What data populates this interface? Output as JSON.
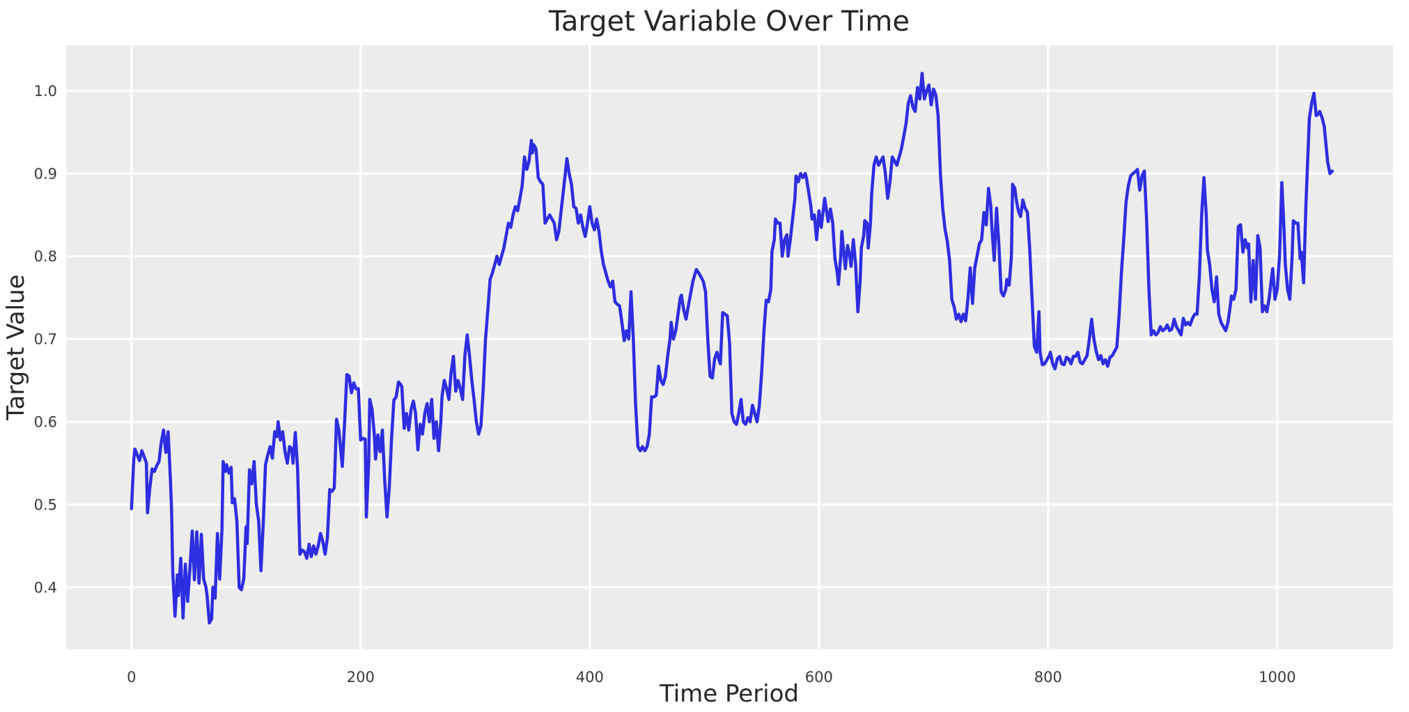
{
  "chart_data": {
    "type": "line",
    "title": "Target Variable Over Time",
    "xlabel": "Time Period",
    "ylabel": "Target Value",
    "legend": "none",
    "grid": true,
    "plot_bg_color": "#ECECEC",
    "grid_color": "#FFFFFF",
    "line_color": "#2D2DE1",
    "text_color": "#262626",
    "x_ticks": [
      0,
      200,
      400,
      600,
      800,
      1000
    ],
    "y_ticks": [
      0.4,
      0.5,
      0.6,
      0.7,
      0.8,
      0.9,
      1.0
    ],
    "xlim": [
      -57,
      1101
    ],
    "ylim": [
      0.325,
      1.055
    ],
    "series": [
      {
        "name": "target",
        "x": [
          0,
          2,
          3,
          5,
          7,
          9,
          11,
          13,
          14,
          16,
          18,
          20,
          22,
          24,
          26,
          28,
          30,
          32,
          34,
          35,
          36,
          38,
          40,
          41,
          43,
          45,
          47,
          49,
          51,
          53,
          55,
          57,
          59,
          61,
          63,
          65,
          66,
          68,
          70,
          71,
          73,
          75,
          77,
          79,
          80,
          82,
          83,
          85,
          87,
          88,
          90,
          92,
          94,
          96,
          98,
          100,
          101,
          103,
          105,
          107,
          109,
          111,
          113,
          115,
          117,
          119,
          121,
          123,
          125,
          127,
          128,
          130,
          132,
          134,
          136,
          138,
          140,
          141,
          143,
          145,
          147,
          149,
          151,
          153,
          155,
          157,
          159,
          161,
          163,
          165,
          167,
          169,
          171,
          173,
          175,
          177,
          179,
          181,
          184,
          186,
          188,
          190,
          192,
          194,
          196,
          198,
          200,
          202,
          204,
          205,
          207,
          208,
          210,
          212,
          213,
          215,
          217,
          219,
          221,
          223,
          225,
          227,
          229,
          231,
          233,
          235,
          236,
          238,
          240,
          242,
          244,
          246,
          248,
          250,
          252,
          254,
          256,
          258,
          260,
          262,
          264,
          266,
          268,
          270,
          271,
          273,
          275,
          277,
          279,
          281,
          283,
          285,
          287,
          289,
          291,
          293,
          295,
          297,
          299,
          301,
          303,
          305,
          307,
          309,
          311,
          313,
          315,
          317,
          319,
          321,
          323,
          325,
          327,
          329,
          331,
          333,
          335,
          337,
          339,
          341,
          343,
          345,
          347,
          349,
          350,
          351,
          353,
          355,
          357,
          359,
          361,
          363,
          365,
          367,
          369,
          371,
          373,
          375,
          377,
          379,
          380,
          382,
          384,
          386,
          388,
          390,
          392,
          394,
          396,
          398,
          400,
          402,
          404,
          406,
          408,
          410,
          412,
          414,
          416,
          418,
          420,
          422,
          424,
          426,
          428,
          430,
          432,
          434,
          436,
          438,
          440,
          442,
          444,
          446,
          448,
          450,
          452,
          454,
          456,
          458,
          460,
          462,
          464,
          466,
          468,
          470,
          471,
          473,
          475,
          477,
          479,
          480,
          482,
          484,
          486,
          488,
          490,
          493,
          495,
          497,
          499,
          501,
          503,
          505,
          507,
          509,
          511,
          513,
          514,
          516,
          518,
          520,
          522,
          524,
          526,
          528,
          530,
          532,
          534,
          536,
          538,
          540,
          542,
          544,
          546,
          548,
          550,
          552,
          554,
          556,
          558,
          559,
          561,
          562,
          564,
          566,
          568,
          570,
          572,
          573,
          575,
          577,
          579,
          580,
          582,
          584,
          586,
          588,
          589,
          591,
          593,
          594,
          596,
          598,
          600,
          602,
          605,
          608,
          610,
          612,
          614,
          616,
          617,
          619,
          620,
          622,
          623,
          625,
          627,
          628,
          630,
          632,
          634,
          636,
          637,
          639,
          640,
          642,
          643,
          645,
          646,
          648,
          650,
          652,
          654,
          656,
          658,
          660,
          662,
          664,
          666,
          668,
          670,
          672,
          674,
          676,
          678,
          680,
          682,
          684,
          686,
          688,
          690,
          692,
          694,
          696,
          698,
          700,
          702,
          704,
          706,
          708,
          710,
          712,
          714,
          716,
          718,
          720,
          722,
          724,
          726,
          728,
          730,
          732,
          734,
          736,
          738,
          740,
          742,
          744,
          746,
          748,
          750,
          751,
          753,
          755,
          757,
          759,
          761,
          763,
          764,
          766,
          768,
          769,
          771,
          772,
          774,
          776,
          778,
          780,
          782,
          784,
          786,
          788,
          790,
          792,
          793,
          795,
          797,
          799,
          801,
          802,
          804,
          806,
          808,
          810,
          812,
          814,
          816,
          818,
          820,
          822,
          824,
          826,
          828,
          830,
          832,
          834,
          836,
          838,
          840,
          842,
          844,
          846,
          848,
          850,
          852,
          854,
          856,
          858,
          860,
          862,
          864,
          866,
          868,
          870,
          872,
          874,
          876,
          878,
          880,
          882,
          884,
          886,
          888,
          890,
          892,
          894,
          896,
          898,
          900,
          902,
          904,
          906,
          908,
          910,
          912,
          914,
          916,
          918,
          920,
          922,
          924,
          926,
          928,
          930,
          932,
          934,
          936,
          938,
          939,
          941,
          943,
          945,
          947,
          949,
          951,
          953,
          955,
          957,
          959,
          960,
          962,
          964,
          966,
          968,
          970,
          972,
          974,
          975,
          977,
          979,
          981,
          983,
          985,
          987,
          989,
          991,
          993,
          996,
          998,
          1000,
          1002,
          1004,
          1006,
          1007,
          1009,
          1011,
          1013,
          1014,
          1016,
          1018,
          1020,
          1021,
          1023,
          1025,
          1028,
          1030,
          1032,
          1034,
          1036,
          1037,
          1039,
          1041,
          1044,
          1046,
          1048
        ],
        "y": [
          0.495,
          0.555,
          0.567,
          0.56,
          0.553,
          0.565,
          0.558,
          0.55,
          0.49,
          0.52,
          0.543,
          0.54,
          0.547,
          0.552,
          0.575,
          0.59,
          0.563,
          0.588,
          0.53,
          0.495,
          0.42,
          0.365,
          0.415,
          0.39,
          0.435,
          0.363,
          0.428,
          0.383,
          0.423,
          0.468,
          0.409,
          0.467,
          0.405,
          0.464,
          0.41,
          0.4,
          0.39,
          0.357,
          0.362,
          0.4,
          0.387,
          0.465,
          0.41,
          0.47,
          0.552,
          0.54,
          0.548,
          0.538,
          0.545,
          0.502,
          0.507,
          0.48,
          0.4,
          0.397,
          0.41,
          0.473,
          0.453,
          0.542,
          0.525,
          0.552,
          0.5,
          0.48,
          0.42,
          0.478,
          0.548,
          0.56,
          0.57,
          0.556,
          0.588,
          0.582,
          0.6,
          0.578,
          0.588,
          0.564,
          0.55,
          0.57,
          0.567,
          0.55,
          0.587,
          0.543,
          0.44,
          0.445,
          0.443,
          0.435,
          0.452,
          0.437,
          0.45,
          0.44,
          0.45,
          0.465,
          0.455,
          0.44,
          0.46,
          0.518,
          0.516,
          0.52,
          0.603,
          0.59,
          0.546,
          0.6,
          0.657,
          0.655,
          0.635,
          0.647,
          0.64,
          0.64,
          0.578,
          0.58,
          0.579,
          0.485,
          0.55,
          0.627,
          0.615,
          0.584,
          0.555,
          0.584,
          0.564,
          0.59,
          0.53,
          0.485,
          0.52,
          0.58,
          0.626,
          0.63,
          0.648,
          0.645,
          0.642,
          0.592,
          0.61,
          0.59,
          0.615,
          0.625,
          0.61,
          0.566,
          0.597,
          0.585,
          0.61,
          0.622,
          0.6,
          0.627,
          0.58,
          0.6,
          0.565,
          0.6,
          0.63,
          0.65,
          0.64,
          0.627,
          0.66,
          0.679,
          0.637,
          0.65,
          0.64,
          0.627,
          0.68,
          0.705,
          0.68,
          0.65,
          0.627,
          0.6,
          0.585,
          0.595,
          0.64,
          0.7,
          0.735,
          0.772,
          0.78,
          0.79,
          0.8,
          0.79,
          0.8,
          0.81,
          0.825,
          0.84,
          0.835,
          0.85,
          0.86,
          0.855,
          0.87,
          0.885,
          0.92,
          0.905,
          0.915,
          0.94,
          0.925,
          0.935,
          0.93,
          0.895,
          0.89,
          0.887,
          0.84,
          0.845,
          0.85,
          0.845,
          0.84,
          0.82,
          0.83,
          0.855,
          0.88,
          0.905,
          0.918,
          0.9,
          0.887,
          0.86,
          0.858,
          0.84,
          0.85,
          0.835,
          0.824,
          0.84,
          0.86,
          0.84,
          0.832,
          0.845,
          0.83,
          0.806,
          0.79,
          0.78,
          0.77,
          0.763,
          0.77,
          0.745,
          0.742,
          0.74,
          0.72,
          0.698,
          0.71,
          0.7,
          0.757,
          0.7,
          0.62,
          0.57,
          0.565,
          0.57,
          0.565,
          0.57,
          0.585,
          0.63,
          0.63,
          0.632,
          0.667,
          0.65,
          0.645,
          0.655,
          0.68,
          0.7,
          0.72,
          0.7,
          0.71,
          0.73,
          0.75,
          0.753,
          0.735,
          0.724,
          0.74,
          0.755,
          0.77,
          0.784,
          0.78,
          0.775,
          0.77,
          0.757,
          0.7,
          0.655,
          0.653,
          0.676,
          0.684,
          0.674,
          0.67,
          0.732,
          0.73,
          0.728,
          0.695,
          0.61,
          0.6,
          0.597,
          0.61,
          0.627,
          0.6,
          0.597,
          0.605,
          0.6,
          0.62,
          0.61,
          0.6,
          0.62,
          0.66,
          0.71,
          0.747,
          0.745,
          0.76,
          0.806,
          0.82,
          0.845,
          0.84,
          0.84,
          0.8,
          0.82,
          0.826,
          0.8,
          0.82,
          0.845,
          0.87,
          0.897,
          0.89,
          0.9,
          0.895,
          0.9,
          0.895,
          0.878,
          0.86,
          0.845,
          0.85,
          0.82,
          0.855,
          0.835,
          0.87,
          0.842,
          0.857,
          0.84,
          0.797,
          0.78,
          0.766,
          0.8,
          0.83,
          0.8,
          0.785,
          0.813,
          0.8,
          0.788,
          0.82,
          0.79,
          0.733,
          0.77,
          0.81,
          0.825,
          0.843,
          0.84,
          0.81,
          0.84,
          0.875,
          0.91,
          0.92,
          0.91,
          0.915,
          0.92,
          0.9,
          0.87,
          0.89,
          0.92,
          0.915,
          0.91,
          0.92,
          0.93,
          0.945,
          0.96,
          0.985,
          0.994,
          0.98,
          0.975,
          1.004,
          0.99,
          1.021,
          0.99,
          1.0,
          1.007,
          0.983,
          1.002,
          0.995,
          0.97,
          0.9,
          0.858,
          0.833,
          0.818,
          0.795,
          0.748,
          0.739,
          0.724,
          0.73,
          0.721,
          0.73,
          0.722,
          0.748,
          0.786,
          0.743,
          0.786,
          0.8,
          0.815,
          0.82,
          0.853,
          0.838,
          0.882,
          0.86,
          0.833,
          0.795,
          0.858,
          0.815,
          0.757,
          0.752,
          0.76,
          0.772,
          0.765,
          0.8,
          0.887,
          0.882,
          0.87,
          0.855,
          0.848,
          0.868,
          0.858,
          0.853,
          0.808,
          0.748,
          0.691,
          0.684,
          0.733,
          0.684,
          0.669,
          0.67,
          0.675,
          0.68,
          0.684,
          0.67,
          0.664,
          0.676,
          0.679,
          0.67,
          0.669,
          0.678,
          0.676,
          0.67,
          0.679,
          0.679,
          0.684,
          0.672,
          0.67,
          0.675,
          0.68,
          0.7,
          0.724,
          0.7,
          0.685,
          0.675,
          0.68,
          0.67,
          0.675,
          0.667,
          0.678,
          0.68,
          0.685,
          0.69,
          0.729,
          0.78,
          0.82,
          0.865,
          0.885,
          0.897,
          0.9,
          0.902,
          0.905,
          0.88,
          0.897,
          0.903,
          0.843,
          0.76,
          0.705,
          0.71,
          0.705,
          0.708,
          0.715,
          0.71,
          0.712,
          0.717,
          0.71,
          0.712,
          0.724,
          0.715,
          0.71,
          0.705,
          0.725,
          0.717,
          0.72,
          0.717,
          0.725,
          0.73,
          0.73,
          0.775,
          0.85,
          0.895,
          0.85,
          0.808,
          0.79,
          0.76,
          0.745,
          0.775,
          0.73,
          0.72,
          0.715,
          0.71,
          0.72,
          0.74,
          0.752,
          0.748,
          0.76,
          0.836,
          0.838,
          0.805,
          0.82,
          0.81,
          0.815,
          0.745,
          0.795,
          0.748,
          0.825,
          0.81,
          0.733,
          0.74,
          0.733,
          0.75,
          0.785,
          0.748,
          0.76,
          0.8,
          0.889,
          0.83,
          0.79,
          0.76,
          0.748,
          0.8,
          0.843,
          0.84,
          0.84,
          0.797,
          0.805,
          0.768,
          0.862,
          0.966,
          0.985,
          0.997,
          0.97,
          0.972,
          0.975,
          0.968,
          0.957,
          0.914,
          0.9,
          0.903
        ]
      }
    ],
    "tick_labels": {
      "x": [
        "0",
        "200",
        "400",
        "600",
        "800",
        "1000"
      ],
      "y": [
        "0.4",
        "0.5",
        "0.6",
        "0.7",
        "0.8",
        "0.9",
        "1.0"
      ]
    }
  }
}
